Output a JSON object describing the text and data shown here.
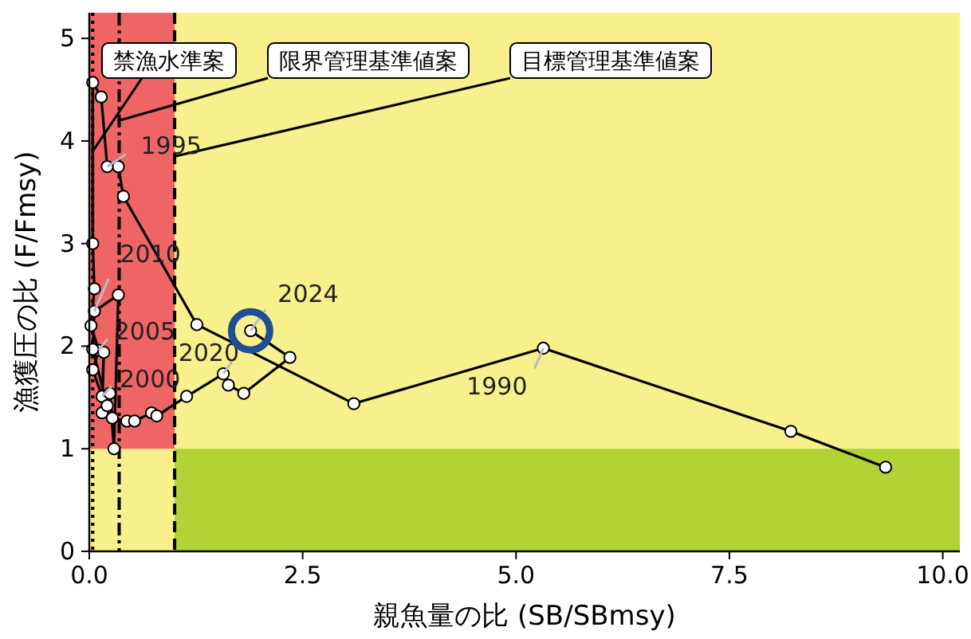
{
  "chart_data": {
    "type": "line",
    "xlabel": "親魚量の比 (SB/SBmsy)",
    "ylabel": "漁獲圧の比 (F/Fmsy)",
    "xlim": [
      0,
      10.2
    ],
    "ylim": [
      0,
      5.25
    ],
    "xticks": [
      {
        "value": 0,
        "label": "0.0"
      },
      {
        "value": 2.5,
        "label": "2.5"
      },
      {
        "value": 5,
        "label": "5.0"
      },
      {
        "value": 7.5,
        "label": "7.5"
      },
      {
        "value": 10,
        "label": "10.0"
      }
    ],
    "yticks": [
      0,
      1,
      2,
      3,
      4,
      5
    ],
    "marker": "circle",
    "line_style": "solid",
    "series": [
      {
        "color": "#000000",
        "x": [
          9.33,
          8.22,
          5.32,
          3.1,
          1.26,
          0.4,
          0.34,
          0.21,
          0.14,
          0.04,
          0.04,
          0.06,
          0.02,
          0.11,
          0.04,
          0.15,
          0.17,
          0.15,
          0.21,
          0.04,
          0.06,
          0.34,
          0.29,
          0.24,
          0.27,
          0.44,
          0.53,
          0.73,
          0.79,
          1.14,
          1.57,
          1.63,
          1.81,
          2.35,
          1.89
        ],
        "values": [
          0.82,
          1.17,
          1.98,
          1.44,
          2.21,
          3.46,
          3.75,
          3.75,
          4.43,
          4.57,
          3.0,
          2.56,
          2.2,
          1.96,
          1.77,
          1.51,
          1.94,
          1.35,
          1.42,
          1.97,
          2.34,
          2.5,
          1.0,
          1.54,
          1.3,
          1.27,
          1.27,
          1.35,
          1.32,
          1.51,
          1.73,
          1.62,
          1.54,
          1.89,
          2.15
        ]
      }
    ],
    "bands": [
      {
        "axis": "x",
        "from": 0,
        "to": 1,
        "color": "#ef6464"
      },
      {
        "axis": "y",
        "from": 0,
        "to": 1,
        "color": "#b2d235"
      }
    ],
    "ref_lines": [
      {
        "axis": "x",
        "value": 0.04,
        "label": "禁漁水準案",
        "line_style": "dotted",
        "color": "#000000"
      },
      {
        "axis": "x",
        "value": 0.35,
        "label": "限界管理基準値案",
        "line_style": "dashdot",
        "color": "#000000"
      },
      {
        "axis": "x",
        "value": 1,
        "label": "目標管理基準値案",
        "line_style": "dashed",
        "color": "#000000"
      }
    ],
    "annotations": [
      {
        "text": "1990",
        "x": 5.32,
        "y": 1.98
      },
      {
        "text": "1995",
        "x": 0.21,
        "y": 3.75
      },
      {
        "text": "2000",
        "x": 0.15,
        "y": 1.51
      },
      {
        "text": "2005",
        "x": 0.11,
        "y": 1.96
      },
      {
        "text": "2010",
        "x": 0.06,
        "y": 2.34
      },
      {
        "text": "2020",
        "x": 1.57,
        "y": 1.73
      },
      {
        "text": "2024",
        "x": 1.89,
        "y": 2.15
      }
    ]
  }
}
